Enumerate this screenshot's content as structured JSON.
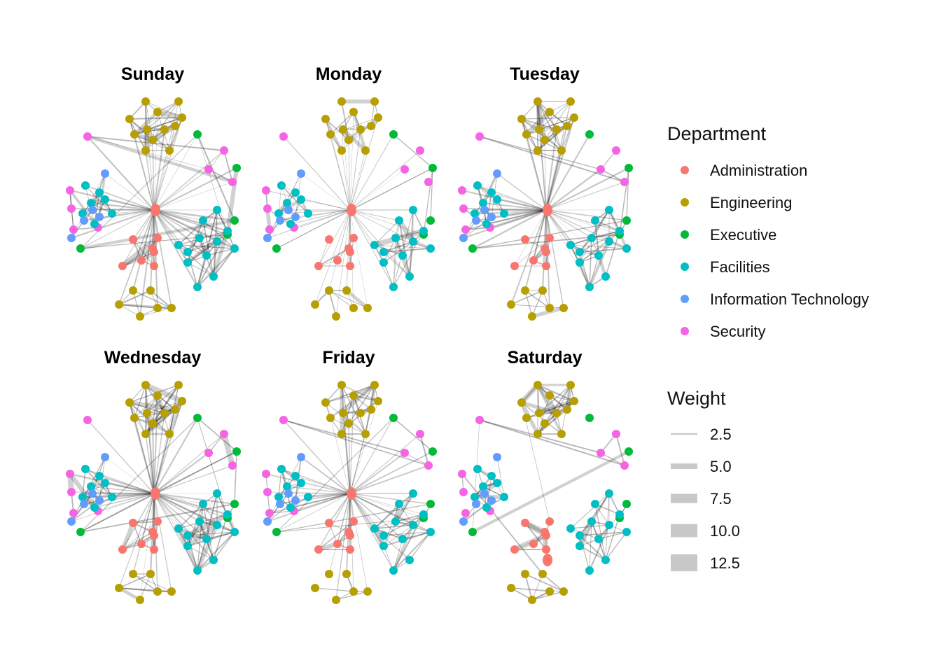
{
  "panels": [
    {
      "title": "Sunday",
      "density": 1.0,
      "hub_weight": 2.2,
      "missing_groups": []
    },
    {
      "title": "Monday",
      "density": 0.45,
      "hub_weight": 0.8,
      "missing_groups": []
    },
    {
      "title": "Tuesday",
      "density": 0.9,
      "hub_weight": 2.0,
      "missing_groups": []
    },
    {
      "title": "Wednesday",
      "density": 0.95,
      "hub_weight": 2.1,
      "missing_groups": []
    },
    {
      "title": "Friday",
      "density": 0.8,
      "hub_weight": 1.6,
      "missing_groups": []
    },
    {
      "title": "Saturday",
      "density": 0.6,
      "hub_weight": 0,
      "missing_groups": []
    }
  ],
  "legend": {
    "department_title": "Department",
    "departments": [
      {
        "name": "Administration",
        "color": "#F8766D"
      },
      {
        "name": "Engineering",
        "color": "#B79F00"
      },
      {
        "name": "Executive",
        "color": "#00BA38"
      },
      {
        "name": "Facilities",
        "color": "#00BFC4"
      },
      {
        "name": "Information Technology",
        "color": "#619CFF"
      },
      {
        "name": "Security",
        "color": "#F564E3"
      }
    ],
    "weight_title": "Weight",
    "weights": [
      {
        "label": "2.5",
        "value": 2.5
      },
      {
        "label": "5.0",
        "value": 5.0
      },
      {
        "label": "7.5",
        "value": 7.5
      },
      {
        "label": "10.0",
        "value": 10.0
      },
      {
        "label": "12.5",
        "value": 12.5
      }
    ]
  }
}
